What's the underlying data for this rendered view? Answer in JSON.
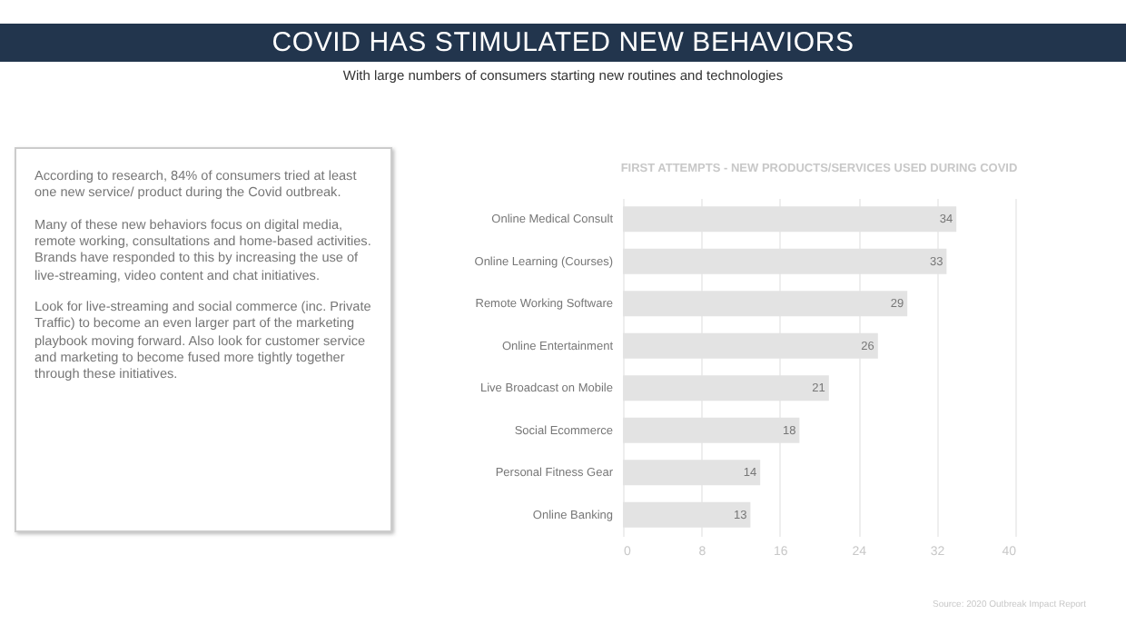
{
  "chart_data": [
    {
      "type": "other",
      "title": "COVID HAS STIMULATED NEW BEHAVIORS",
      "subtitle": "With large numbers of consumers starting new routines and technologies",
      "annotations": [
        "According to research, 84% of consumers tried at least one new service/ product during the Covid outbreak.",
        "Many of these new behaviors focus on digital media, remote working, consultations and home-based activities. Brands have responded to this by increasing the use of live-streaming, video content and chat initiatives.",
        "Look for live-streaming and social commerce (inc. Private Traffic) to become an even larger part of the marketing playbook moving forward. Also look for customer service and marketing to become fused more tightly together through these initiatives."
      ]
    },
    {
      "type": "bar",
      "orientation": "horizontal",
      "title": "FIRST ATTEMPTS - NEW PRODUCTS/SERVICES USED DURING COVID",
      "categories": [
        "Online Medical Consult",
        "Online Learning (Courses)",
        "Remote Working Software",
        "Online Entertainment",
        "Live Broadcast on Mobile",
        "Social Ecommerce",
        "Personal Fitness Gear",
        "Online Banking"
      ],
      "values": [
        34,
        33,
        29,
        26,
        21,
        18,
        14,
        13
      ],
      "color": "#e3e3e3",
      "xlim": [
        0,
        40
      ],
      "xticks": [
        0,
        8,
        16,
        24,
        32,
        40
      ],
      "grid": "x",
      "data_labels": true,
      "annotations": [
        "Source: 2020 Outbreak Impact Report"
      ]
    }
  ]
}
